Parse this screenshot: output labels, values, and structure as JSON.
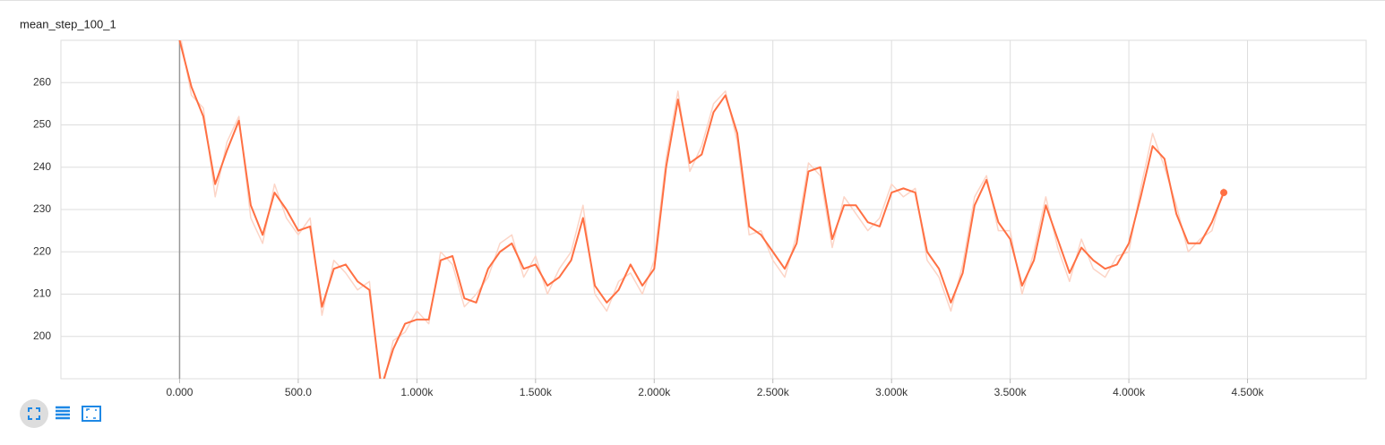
{
  "chart_data": {
    "type": "line",
    "title": "mean_step_100_1",
    "x": [
      0,
      50,
      100,
      150,
      200,
      250,
      300,
      350,
      400,
      450,
      500,
      550,
      600,
      650,
      700,
      750,
      800,
      850,
      900,
      950,
      1000,
      1050,
      1100,
      1150,
      1200,
      1250,
      1300,
      1350,
      1400,
      1450,
      1500,
      1550,
      1600,
      1650,
      1700,
      1750,
      1800,
      1850,
      1900,
      1950,
      2000,
      2050,
      2100,
      2150,
      2200,
      2250,
      2300,
      2350,
      2400,
      2450,
      2500,
      2550,
      2600,
      2650,
      2700,
      2750,
      2800,
      2850,
      2900,
      2950,
      3000,
      3050,
      3100,
      3150,
      3200,
      3250,
      3300,
      3350,
      3400,
      3450,
      3500,
      3550,
      3600,
      3650,
      3700,
      3750,
      3800,
      3850,
      3900,
      3950,
      4000,
      4050,
      4100,
      4150,
      4200,
      4250,
      4300,
      4350,
      4400
    ],
    "series": [
      {
        "color": "#fcd5c7",
        "values": [
          272,
          257,
          254,
          233,
          246,
          252,
          228,
          222,
          236,
          228,
          224,
          228,
          205,
          218,
          215,
          211,
          213,
          186,
          199,
          201,
          206,
          203,
          220,
          217,
          207,
          210,
          214,
          222,
          224,
          214,
          219,
          210,
          216,
          220,
          231,
          210,
          206,
          213,
          215,
          210,
          218,
          242,
          258,
          239,
          245,
          255,
          258,
          246,
          224,
          225,
          218,
          214,
          224,
          241,
          238,
          221,
          233,
          229,
          225,
          228,
          236,
          233,
          235,
          218,
          214,
          206,
          217,
          233,
          238,
          225,
          225,
          210,
          220,
          233,
          221,
          213,
          223,
          216,
          214,
          219,
          220,
          235,
          248,
          240,
          231,
          220,
          223,
          225,
          235
        ]
      },
      {
        "color": "#ff7043",
        "values": [
          270,
          259,
          252,
          236,
          244,
          251,
          231,
          224,
          234,
          230,
          225,
          226,
          207,
          216,
          217,
          213,
          211,
          188,
          197,
          203,
          204,
          204,
          218,
          219,
          209,
          208,
          216,
          220,
          222,
          216,
          217,
          212,
          214,
          218,
          228,
          212,
          208,
          211,
          217,
          212,
          216,
          240,
          256,
          241,
          243,
          253,
          257,
          248,
          226,
          224,
          220,
          216,
          222,
          239,
          240,
          223,
          231,
          231,
          227,
          226,
          234,
          235,
          234,
          220,
          216,
          208,
          215,
          231,
          237,
          227,
          223,
          212,
          218,
          231,
          223,
          215,
          221,
          218,
          216,
          217,
          222,
          233,
          245,
          242,
          229,
          222,
          222,
          227,
          234
        ]
      }
    ],
    "xlim": [
      -500,
      5000
    ],
    "ylim": [
      190,
      270
    ],
    "xticks": [
      {
        "value": 0,
        "label": "0.000"
      },
      {
        "value": 500,
        "label": "500.0"
      },
      {
        "value": 1000,
        "label": "1.000k"
      },
      {
        "value": 1500,
        "label": "1.500k"
      },
      {
        "value": 2000,
        "label": "2.000k"
      },
      {
        "value": 2500,
        "label": "2.500k"
      },
      {
        "value": 3000,
        "label": "3.000k"
      },
      {
        "value": 3500,
        "label": "3.500k"
      },
      {
        "value": 4000,
        "label": "4.000k"
      },
      {
        "value": 4500,
        "label": "4.500k"
      }
    ],
    "yticks": [
      200,
      210,
      220,
      230,
      240,
      250,
      260
    ],
    "grid": true
  }
}
